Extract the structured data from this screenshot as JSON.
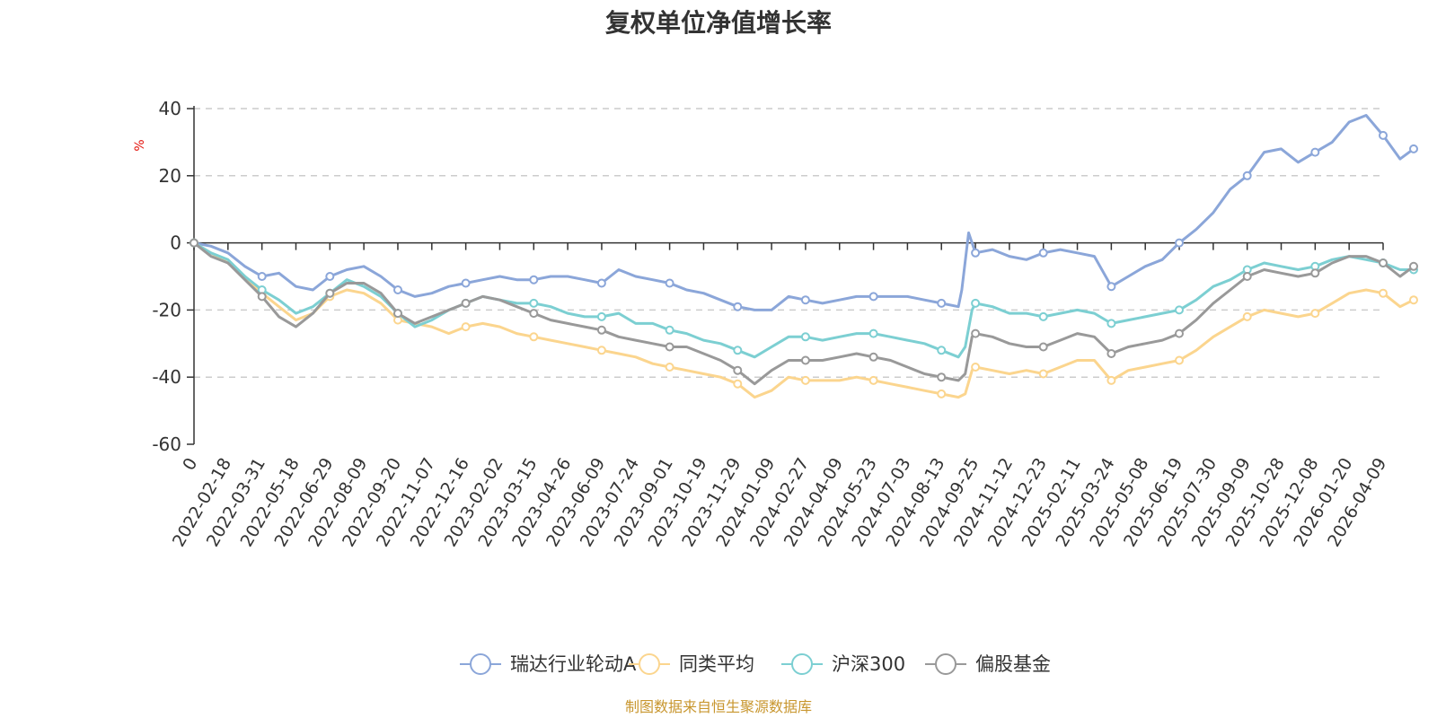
{
  "chart_data": {
    "type": "line",
    "title": "复权单位净值增长率",
    "ylabel": "%",
    "ylim": [
      -60,
      40
    ],
    "yticks": [
      40,
      20,
      0,
      -20,
      -40,
      -60
    ],
    "x_start_label": "0",
    "x_tick_labels": [
      "2022-02-18",
      "2022-03-31",
      "2022-05-18",
      "2022-06-29",
      "2022-08-09",
      "2022-09-20",
      "2022-11-07",
      "2022-12-16",
      "2023-02-02",
      "2023-03-15",
      "2023-04-26",
      "2023-06-09",
      "2023-07-24",
      "2023-09-01",
      "2023-10-19",
      "2023-11-29",
      "2024-01-09",
      "2024-02-27",
      "2024-04-09",
      "2024-05-23",
      "2024-07-03",
      "2024-08-13",
      "2024-09-25",
      "2024-11-12",
      "2024-12-23",
      "2025-02-11",
      "2025-03-24",
      "2025-05-08",
      "2025-06-19",
      "2025-07-30",
      "2025-09-09",
      "2025-10-28",
      "2025-12-08",
      "2026-01-20",
      "2026-04-09"
    ],
    "grid": true,
    "legend_position": "bottom-center",
    "x_index_max": 35,
    "series": [
      {
        "name": "瑞达行业轮动A",
        "color": "#8ba6d9",
        "points": [
          [
            0,
            0
          ],
          [
            0.5,
            -1
          ],
          [
            1,
            -3
          ],
          [
            1.5,
            -7
          ],
          [
            2,
            -10
          ],
          [
            2.5,
            -9
          ],
          [
            3,
            -13
          ],
          [
            3.5,
            -14
          ],
          [
            4,
            -10
          ],
          [
            4.5,
            -8
          ],
          [
            5,
            -7
          ],
          [
            5.5,
            -10
          ],
          [
            6,
            -14
          ],
          [
            6.5,
            -16
          ],
          [
            7,
            -15
          ],
          [
            7.5,
            -13
          ],
          [
            8,
            -12
          ],
          [
            8.5,
            -11
          ],
          [
            9,
            -10
          ],
          [
            9.5,
            -11
          ],
          [
            10,
            -11
          ],
          [
            10.5,
            -10
          ],
          [
            11,
            -10
          ],
          [
            11.5,
            -11
          ],
          [
            12,
            -12
          ],
          [
            12.5,
            -8
          ],
          [
            13,
            -10
          ],
          [
            13.5,
            -11
          ],
          [
            14,
            -12
          ],
          [
            14.5,
            -14
          ],
          [
            15,
            -15
          ],
          [
            15.5,
            -17
          ],
          [
            16,
            -19
          ],
          [
            16.5,
            -20
          ],
          [
            17,
            -20
          ],
          [
            17.5,
            -16
          ],
          [
            18,
            -17
          ],
          [
            18.5,
            -18
          ],
          [
            19,
            -17
          ],
          [
            19.5,
            -16
          ],
          [
            20,
            -16
          ],
          [
            20.5,
            -16
          ],
          [
            21,
            -16
          ],
          [
            21.5,
            -17
          ],
          [
            22,
            -18
          ],
          [
            22.5,
            -19
          ],
          [
            22.6,
            -14
          ],
          [
            22.8,
            3
          ],
          [
            23,
            -3
          ],
          [
            23.5,
            -2
          ],
          [
            24,
            -4
          ],
          [
            24.5,
            -5
          ],
          [
            25,
            -3
          ],
          [
            25.5,
            -2
          ],
          [
            26,
            -3
          ],
          [
            26.5,
            -4
          ],
          [
            27,
            -13
          ],
          [
            27.5,
            -10
          ],
          [
            28,
            -7
          ],
          [
            28.5,
            -5
          ],
          [
            29,
            0
          ],
          [
            29.5,
            4
          ],
          [
            30,
            9
          ],
          [
            30.5,
            16
          ],
          [
            31,
            20
          ],
          [
            31.5,
            27
          ],
          [
            32,
            28
          ],
          [
            32.5,
            24
          ],
          [
            33,
            27
          ],
          [
            33.5,
            30
          ],
          [
            34,
            36
          ],
          [
            34.5,
            38
          ],
          [
            35,
            32
          ],
          [
            35.5,
            25
          ],
          [
            35.9,
            28
          ]
        ]
      },
      {
        "name": "同类平均",
        "color": "#fbd58e",
        "points": [
          [
            0,
            0
          ],
          [
            0.5,
            -3
          ],
          [
            1,
            -6
          ],
          [
            1.5,
            -10
          ],
          [
            2,
            -15
          ],
          [
            2.5,
            -19
          ],
          [
            3,
            -23
          ],
          [
            3.5,
            -21
          ],
          [
            4,
            -16
          ],
          [
            4.5,
            -14
          ],
          [
            5,
            -15
          ],
          [
            5.5,
            -18
          ],
          [
            6,
            -23
          ],
          [
            6.5,
            -24
          ],
          [
            7,
            -25
          ],
          [
            7.5,
            -27
          ],
          [
            8,
            -25
          ],
          [
            8.5,
            -24
          ],
          [
            9,
            -25
          ],
          [
            9.5,
            -27
          ],
          [
            10,
            -28
          ],
          [
            10.5,
            -29
          ],
          [
            11,
            -30
          ],
          [
            11.5,
            -31
          ],
          [
            12,
            -32
          ],
          [
            12.5,
            -33
          ],
          [
            13,
            -34
          ],
          [
            13.5,
            -36
          ],
          [
            14,
            -37
          ],
          [
            14.5,
            -38
          ],
          [
            15,
            -39
          ],
          [
            15.5,
            -40
          ],
          [
            16,
            -42
          ],
          [
            16.5,
            -46
          ],
          [
            17,
            -44
          ],
          [
            17.5,
            -40
          ],
          [
            18,
            -41
          ],
          [
            18.5,
            -41
          ],
          [
            19,
            -41
          ],
          [
            19.5,
            -40
          ],
          [
            20,
            -41
          ],
          [
            20.5,
            -42
          ],
          [
            21,
            -43
          ],
          [
            21.5,
            -44
          ],
          [
            22,
            -45
          ],
          [
            22.5,
            -46
          ],
          [
            22.7,
            -45
          ],
          [
            22.9,
            -38
          ],
          [
            23,
            -37
          ],
          [
            23.5,
            -38
          ],
          [
            24,
            -39
          ],
          [
            24.5,
            -38
          ],
          [
            25,
            -39
          ],
          [
            25.5,
            -37
          ],
          [
            26,
            -35
          ],
          [
            26.5,
            -35
          ],
          [
            27,
            -41
          ],
          [
            27.5,
            -38
          ],
          [
            28,
            -37
          ],
          [
            28.5,
            -36
          ],
          [
            29,
            -35
          ],
          [
            29.5,
            -32
          ],
          [
            30,
            -28
          ],
          [
            30.5,
            -25
          ],
          [
            31,
            -22
          ],
          [
            31.5,
            -20
          ],
          [
            32,
            -21
          ],
          [
            32.5,
            -22
          ],
          [
            33,
            -21
          ],
          [
            33.5,
            -18
          ],
          [
            34,
            -15
          ],
          [
            34.5,
            -14
          ],
          [
            35,
            -15
          ],
          [
            35.5,
            -19
          ],
          [
            35.9,
            -17
          ]
        ]
      },
      {
        "name": "沪深300",
        "color": "#7ccfd2",
        "points": [
          [
            0,
            0
          ],
          [
            0.5,
            -3
          ],
          [
            1,
            -5
          ],
          [
            1.5,
            -10
          ],
          [
            2,
            -14
          ],
          [
            2.5,
            -17
          ],
          [
            3,
            -21
          ],
          [
            3.5,
            -19
          ],
          [
            4,
            -15
          ],
          [
            4.5,
            -11
          ],
          [
            5,
            -13
          ],
          [
            5.5,
            -16
          ],
          [
            6,
            -21
          ],
          [
            6.5,
            -25
          ],
          [
            7,
            -23
          ],
          [
            7.5,
            -20
          ],
          [
            8,
            -18
          ],
          [
            8.5,
            -16
          ],
          [
            9,
            -17
          ],
          [
            9.5,
            -18
          ],
          [
            10,
            -18
          ],
          [
            10.5,
            -19
          ],
          [
            11,
            -21
          ],
          [
            11.5,
            -22
          ],
          [
            12,
            -22
          ],
          [
            12.5,
            -21
          ],
          [
            13,
            -24
          ],
          [
            13.5,
            -24
          ],
          [
            14,
            -26
          ],
          [
            14.5,
            -27
          ],
          [
            15,
            -29
          ],
          [
            15.5,
            -30
          ],
          [
            16,
            -32
          ],
          [
            16.5,
            -34
          ],
          [
            17,
            -31
          ],
          [
            17.5,
            -28
          ],
          [
            18,
            -28
          ],
          [
            18.5,
            -29
          ],
          [
            19,
            -28
          ],
          [
            19.5,
            -27
          ],
          [
            20,
            -27
          ],
          [
            20.5,
            -28
          ],
          [
            21,
            -29
          ],
          [
            21.5,
            -30
          ],
          [
            22,
            -32
          ],
          [
            22.5,
            -34
          ],
          [
            22.7,
            -31
          ],
          [
            22.9,
            -20
          ],
          [
            23,
            -18
          ],
          [
            23.5,
            -19
          ],
          [
            24,
            -21
          ],
          [
            24.5,
            -21
          ],
          [
            25,
            -22
          ],
          [
            25.5,
            -21
          ],
          [
            26,
            -20
          ],
          [
            26.5,
            -21
          ],
          [
            27,
            -24
          ],
          [
            27.5,
            -23
          ],
          [
            28,
            -22
          ],
          [
            28.5,
            -21
          ],
          [
            29,
            -20
          ],
          [
            29.5,
            -17
          ],
          [
            30,
            -13
          ],
          [
            30.5,
            -11
          ],
          [
            31,
            -8
          ],
          [
            31.5,
            -6
          ],
          [
            32,
            -7
          ],
          [
            32.5,
            -8
          ],
          [
            33,
            -7
          ],
          [
            33.5,
            -5
          ],
          [
            34,
            -4
          ],
          [
            34.5,
            -5
          ],
          [
            35,
            -6
          ],
          [
            35.5,
            -8
          ],
          [
            35.9,
            -8
          ]
        ]
      },
      {
        "name": "偏股基金",
        "color": "#999999",
        "points": [
          [
            0,
            0
          ],
          [
            0.5,
            -4
          ],
          [
            1,
            -6
          ],
          [
            1.5,
            -11
          ],
          [
            2,
            -16
          ],
          [
            2.5,
            -22
          ],
          [
            3,
            -25
          ],
          [
            3.5,
            -21
          ],
          [
            4,
            -15
          ],
          [
            4.5,
            -12
          ],
          [
            5,
            -12
          ],
          [
            5.5,
            -15
          ],
          [
            6,
            -21
          ],
          [
            6.5,
            -24
          ],
          [
            7,
            -22
          ],
          [
            7.5,
            -20
          ],
          [
            8,
            -18
          ],
          [
            8.5,
            -16
          ],
          [
            9,
            -17
          ],
          [
            9.5,
            -19
          ],
          [
            10,
            -21
          ],
          [
            10.5,
            -23
          ],
          [
            11,
            -24
          ],
          [
            11.5,
            -25
          ],
          [
            12,
            -26
          ],
          [
            12.5,
            -28
          ],
          [
            13,
            -29
          ],
          [
            13.5,
            -30
          ],
          [
            14,
            -31
          ],
          [
            14.5,
            -31
          ],
          [
            15,
            -33
          ],
          [
            15.5,
            -35
          ],
          [
            16,
            -38
          ],
          [
            16.5,
            -42
          ],
          [
            17,
            -38
          ],
          [
            17.5,
            -35
          ],
          [
            18,
            -35
          ],
          [
            18.5,
            -35
          ],
          [
            19,
            -34
          ],
          [
            19.5,
            -33
          ],
          [
            20,
            -34
          ],
          [
            20.5,
            -35
          ],
          [
            21,
            -37
          ],
          [
            21.5,
            -39
          ],
          [
            22,
            -40
          ],
          [
            22.5,
            -41
          ],
          [
            22.7,
            -39
          ],
          [
            22.9,
            -28
          ],
          [
            23,
            -27
          ],
          [
            23.5,
            -28
          ],
          [
            24,
            -30
          ],
          [
            24.5,
            -31
          ],
          [
            25,
            -31
          ],
          [
            25.5,
            -29
          ],
          [
            26,
            -27
          ],
          [
            26.5,
            -28
          ],
          [
            27,
            -33
          ],
          [
            27.5,
            -31
          ],
          [
            28,
            -30
          ],
          [
            28.5,
            -29
          ],
          [
            29,
            -27
          ],
          [
            29.5,
            -23
          ],
          [
            30,
            -18
          ],
          [
            30.5,
            -14
          ],
          [
            31,
            -10
          ],
          [
            31.5,
            -8
          ],
          [
            32,
            -9
          ],
          [
            32.5,
            -10
          ],
          [
            33,
            -9
          ],
          [
            33.5,
            -6
          ],
          [
            34,
            -4
          ],
          [
            34.5,
            -4
          ],
          [
            35,
            -6
          ],
          [
            35.5,
            -10
          ],
          [
            35.9,
            -7
          ]
        ]
      }
    ]
  },
  "source": "制图数据来自恒生聚源数据库"
}
